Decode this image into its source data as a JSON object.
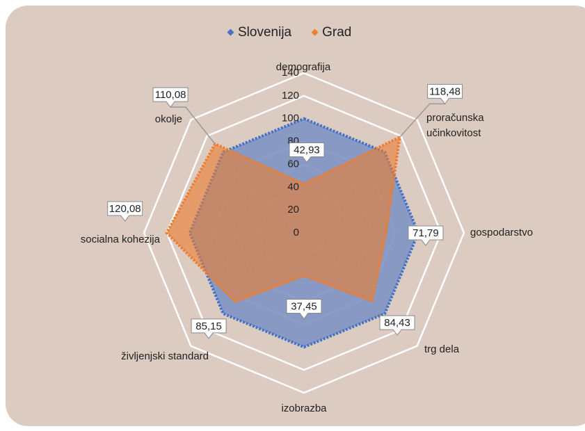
{
  "chart_data": {
    "type": "radar",
    "categories": [
      "demografija",
      "proračunska učinkovitost",
      "gospodarstvo",
      "trg dela",
      "izobrazba",
      "življenjski standard",
      "socialna kohezija",
      "okolje"
    ],
    "series": [
      {
        "name": "Slovenija",
        "color": "#4472c4",
        "values": [
          100,
          100,
          100,
          100,
          100,
          100,
          100,
          100
        ]
      },
      {
        "name": "Grad",
        "color": "#ed7d31",
        "values": [
          42.93,
          118.48,
          71.79,
          84.43,
          37.45,
          85.15,
          120.08,
          110.08
        ],
        "value_labels": [
          "42,93",
          "118,48",
          "71,79",
          "84,43",
          "37,45",
          "85,15",
          "120,08",
          "110,08"
        ]
      }
    ],
    "ylim": [
      0,
      140
    ],
    "yticks": [
      0,
      20,
      40,
      60,
      80,
      100,
      120,
      140
    ],
    "legend": "top"
  }
}
